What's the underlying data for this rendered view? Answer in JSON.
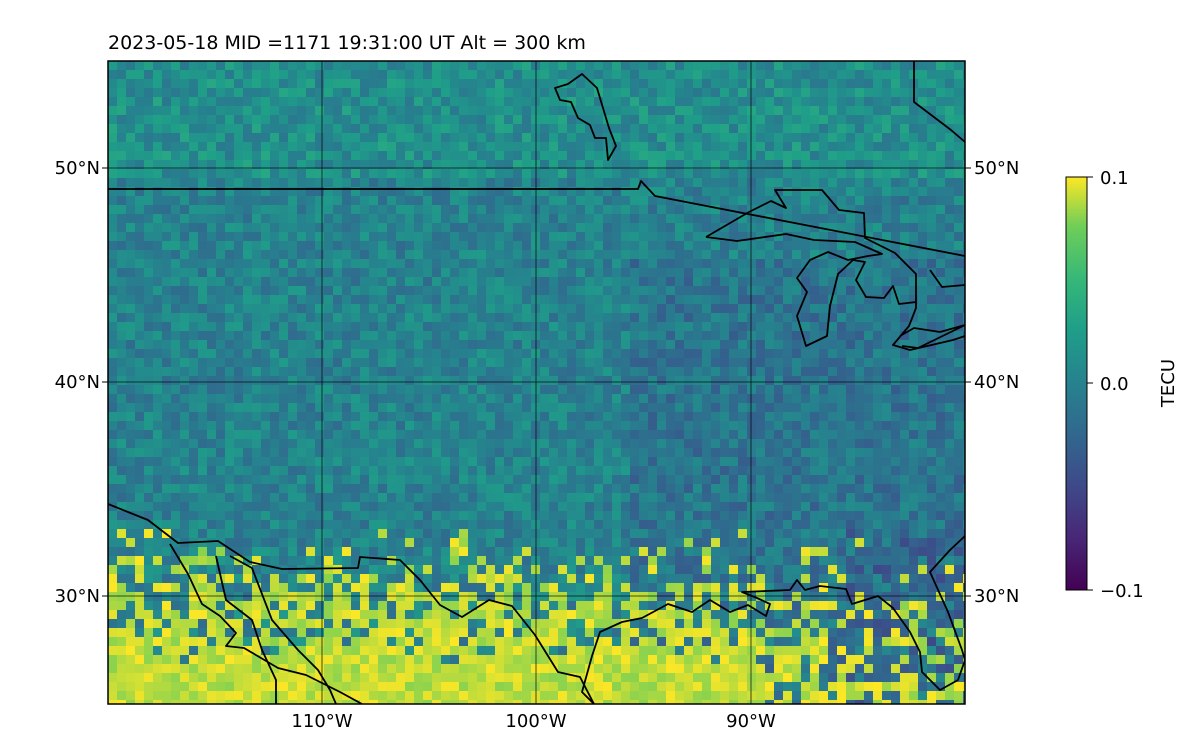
{
  "header": {
    "title": "2023-05-18  MID =1171    19:31:00  UT  Alt = 300 km"
  },
  "map": {
    "lat_labels": [
      "50°N",
      "40°N",
      "30°N"
    ],
    "lat_values": [
      50,
      40,
      30
    ],
    "lon_labels": [
      "110°W",
      "100°W",
      "90°W"
    ],
    "lon_values": [
      -110,
      -100,
      -90
    ],
    "lon_range": [
      -120,
      -80
    ],
    "lat_range": [
      25,
      55
    ],
    "background_color": "#2a8a8c",
    "grid": true
  },
  "colorbar": {
    "label": "TECU",
    "max_label": "0.1",
    "mid_label": "0.0",
    "min_label": "−0.1",
    "range": [
      -0.1,
      0.1
    ],
    "colormap": "viridis",
    "colors": [
      "#440154",
      "#3b528b",
      "#21918c",
      "#5ec962",
      "#fde725"
    ]
  }
}
